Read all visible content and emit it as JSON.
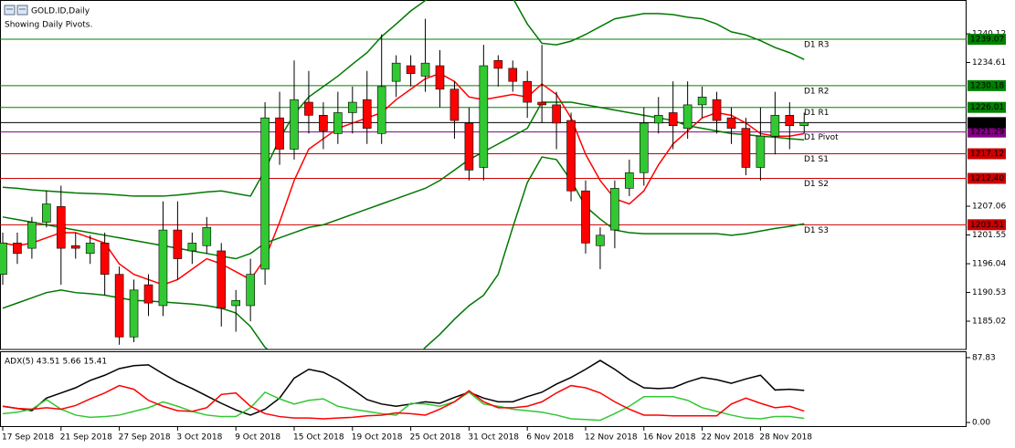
{
  "chart_data": {
    "type": "candlestick",
    "title": "GOLD.ID,Daily",
    "subtitle": "Showing Daily Pivots.",
    "categories": [
      "17 Sep 2018",
      null,
      null,
      null,
      "21 Sep 2018",
      null,
      null,
      null,
      "27 Sep 2018",
      null,
      null,
      null,
      "3 Oct 2018",
      null,
      null,
      null,
      "9 Oct 2018",
      null,
      null,
      null,
      "15 Oct 2018",
      null,
      null,
      null,
      "19 Oct 2018",
      null,
      null,
      null,
      "25 Oct 2018",
      null,
      null,
      null,
      "31 Oct 2018",
      null,
      null,
      null,
      "6 Nov 2018",
      null,
      null,
      null,
      "12 Nov 2018",
      null,
      null,
      null,
      "16 Nov 2018",
      null,
      null,
      null,
      "22 Nov 2018",
      null,
      null,
      null,
      "28 Nov 2018",
      null,
      null,
      null
    ],
    "open": [
      1194,
      1200,
      1199,
      1204,
      1207,
      1199.5,
      1198,
      1200,
      1194,
      1182,
      1192,
      1188,
      1202.5,
      1198.5,
      1199.5,
      1198.5,
      1188,
      1188,
      1195,
      1224,
      1218,
      1227,
      1224.5,
      1221,
      1225,
      1227.5,
      1221,
      1231,
      1234,
      1232,
      1234,
      1229.5,
      1223,
      1214.5,
      1235,
      1233.5,
      1231,
      1227,
      1226.5,
      1223.5,
      1210,
      1199.5,
      1202.5,
      1210.5,
      1213.5,
      1223,
      1225,
      1222,
      1226.5,
      1227.5,
      1224,
      1222,
      1214.5,
      1220.5,
      1224.5,
      1222.5
    ],
    "high": [
      1202,
      1202,
      1205,
      1210,
      1211,
      1202,
      1201.5,
      1202,
      1195.5,
      1193,
      1194,
      1208,
      1208,
      1202,
      1205,
      1200,
      1191,
      1197,
      1227,
      1229,
      1235,
      1233,
      1227,
      1229,
      1230,
      1233,
      1240,
      1236,
      1236,
      1243,
      1237,
      1231,
      1226,
      1238,
      1236,
      1235,
      1233,
      1238,
      1229,
      1225,
      1212,
      1203,
      1212,
      1216,
      1226,
      1228,
      1231,
      1231,
      1230,
      1229,
      1226,
      1224,
      1226,
      1229,
      1227,
      1225
    ],
    "low": [
      1192,
      1196,
      1197,
      1203,
      1192,
      1197,
      1196,
      1190,
      1180.5,
      1181,
      1186,
      1186,
      1193,
      1196,
      1198,
      1184,
      1183,
      1185,
      1192,
      1215,
      1216,
      1221,
      1218,
      1219,
      1221,
      1219,
      1219,
      1228,
      1230,
      1229,
      1226,
      1220,
      1212,
      1212,
      1230,
      1229,
      1224,
      1223,
      1218,
      1208,
      1198,
      1195,
      1199,
      1209,
      1211,
      1221,
      1218,
      1220,
      1224,
      1221,
      1219,
      1213,
      1212,
      1217,
      1218,
      1221
    ],
    "close": [
      1200,
      1198,
      1204,
      1207.5,
      1199,
      1199,
      1200,
      1194,
      1182,
      1191,
      1188.5,
      1202.5,
      1197,
      1200,
      1203,
      1187.5,
      1189,
      1194,
      1224,
      1218,
      1227.5,
      1224.5,
      1221.5,
      1225,
      1227,
      1222,
      1230,
      1234.5,
      1232.5,
      1234.5,
      1229.5,
      1223.5,
      1214,
      1234,
      1233.5,
      1231,
      1227,
      1226.5,
      1223,
      1210,
      1200,
      1201.5,
      1210.5,
      1213.5,
      1223,
      1224.5,
      1222.5,
      1226.5,
      1228,
      1223.5,
      1222,
      1214.5,
      1220.5,
      1224.5,
      1222.5,
      1223.09
    ],
    "up_color": "#32c832",
    "down_color": "#ff0000",
    "ylim": [
      1179.6,
      1246.6
    ],
    "yticks": [
      1185.02,
      1190.53,
      1196.04,
      1201.55,
      1207.06,
      1234.61,
      1240.12
    ],
    "overlays": [
      {
        "color": "#ff0000",
        "values": [
          1200,
          1199.5,
          1200,
          1201,
          1202,
          1202,
          1201,
          1200,
          1196,
          1194,
          1193,
          1192,
          1193,
          1195,
          1197,
          1196,
          1194.5,
          1193,
          1197,
          1204,
          1212,
          1218,
          1220,
          1222,
          1223,
          1224,
          1225,
          1227.5,
          1229.5,
          1231.5,
          1232.5,
          1231,
          1228,
          1227.5,
          1228,
          1228.5,
          1228,
          1230.5,
          1228.5,
          1224,
          1217,
          1212,
          1208.5,
          1207.5,
          1210,
          1215,
          1219,
          1221.5,
          1224,
          1225,
          1224.5,
          1223,
          1221,
          1220.5,
          1220.5,
          1221
        ]
      },
      {
        "color": "#007800",
        "values": [
          1205,
          1204.5,
          1204,
          1203.5,
          1203,
          1202.5,
          1202,
          1201.5,
          1201,
          1200.5,
          1200,
          1199.5,
          1199,
          1198.5,
          1198,
          1197.5,
          1197,
          1198,
          1200,
          1201,
          1202,
          1203,
          1203.5,
          1204.5,
          1205.5,
          1206.5,
          1207.5,
          1208.5,
          1209.5,
          1210.5,
          1212,
          1214,
          1216,
          1217.5,
          1219,
          1220.5,
          1222,
          1227,
          1227,
          1227,
          1226.5,
          1226,
          1225.5,
          1225,
          1224.5,
          1224,
          1223.5,
          1222.5,
          1222,
          1221.5,
          1221,
          1220.8,
          1220.5,
          1220.3,
          1220,
          1219.8
        ]
      },
      {
        "color": "#007800",
        "values": [
          1210.7,
          1210.5,
          1210.2,
          1210,
          1209.8,
          1209.6,
          1209.5,
          1209.4,
          1209.2,
          1209,
          1209,
          1209,
          1209.2,
          1209.5,
          1209.8,
          1210,
          1209.5,
          1209,
          1214,
          1220,
          1224.7,
          1228,
          1230,
          1232,
          1234.3,
          1236.5,
          1239.6,
          1242,
          1244.5,
          1246.5,
          1248,
          1249,
          1250,
          1251,
          1250,
          1247,
          1242,
          1238.3,
          1238,
          1238.7,
          1240,
          1241.5,
          1243,
          1243.5,
          1244,
          1244,
          1243.8,
          1243.3,
          1243,
          1242,
          1240.5,
          1239.9,
          1238.8,
          1237.5,
          1236.5,
          1235.2
        ]
      },
      {
        "color": "#007800",
        "values": [
          1187.5,
          1188.5,
          1189.5,
          1190.5,
          1191,
          1190.5,
          1190.3,
          1190,
          1189.5,
          1189,
          1188.9,
          1188.7,
          1188.5,
          1188.3,
          1188,
          1187.5,
          1186.6,
          1184,
          1180,
          1178,
          1177,
          1176,
          1175.5,
          1175,
          1175,
          1175,
          1175,
          1175.5,
          1177,
          1180,
          1182.5,
          1185.4,
          1188,
          1190,
          1194,
          1203,
          1211.6,
          1216.5,
          1216,
          1212,
          1207,
          1204.6,
          1202.5,
          1202,
          1201.8,
          1201.8,
          1201.8,
          1201.8,
          1201.8,
          1201.8,
          1201.5,
          1201.8,
          1202.3,
          1202.8,
          1203.2,
          1203.7
        ]
      }
    ],
    "pivots": [
      {
        "label": "D1 R3",
        "value": 1239.07,
        "color": "#008000"
      },
      {
        "label": "D1 R2",
        "value": 1230.18,
        "color": "#008000"
      },
      {
        "label": "D1 R1",
        "value": 1226.01,
        "color": "#008000"
      },
      {
        "label": "D1 Pivot",
        "value": 1221.29,
        "color": "#800080"
      },
      {
        "label": "D1 S1",
        "value": 1217.12,
        "color": "#cc0000"
      },
      {
        "label": "D1 S2",
        "value": 1212.4,
        "value_label": "1212.40",
        "color": "#cc0000"
      },
      {
        "label": "D1 S3",
        "value": 1203.51,
        "color": "#cc0000"
      }
    ],
    "last_price": 1223.09,
    "indicator": {
      "label": "ADX(5) 43.51 5.66 15.41",
      "ylim": [
        -4.9,
        95.2
      ],
      "yticks": [
        {
          "value": 0,
          "label": "0.00"
        },
        87.83
      ],
      "series": [
        {
          "color": "#000000",
          "values": [
            22,
            19,
            16,
            33,
            40,
            47,
            57,
            64,
            73,
            77,
            78,
            66,
            55,
            46,
            36,
            26,
            17,
            10,
            18,
            33,
            60,
            72,
            68,
            58,
            45,
            31,
            25,
            22,
            25,
            28,
            26,
            34,
            41,
            33,
            28,
            28,
            35,
            41,
            52,
            61,
            72,
            84,
            72,
            58,
            47,
            46,
            47,
            55,
            61,
            58,
            53,
            59,
            64,
            44,
            45,
            43.51
          ]
        },
        {
          "color": "#32c832",
          "values": [
            12,
            14,
            18,
            31,
            18,
            10,
            7,
            8,
            10,
            15,
            20,
            28,
            22,
            15,
            10,
            8,
            8,
            20,
            41,
            32,
            25,
            30,
            32,
            22,
            18,
            15,
            12,
            10,
            26,
            25,
            22,
            28,
            41,
            25,
            22,
            18,
            16,
            14,
            10,
            5,
            4,
            3,
            12,
            22,
            35,
            35,
            35,
            30,
            20,
            15,
            10,
            6,
            5,
            8,
            8,
            5.66
          ]
        },
        {
          "color": "#ff0000",
          "values": [
            22,
            19,
            18,
            20,
            18,
            23,
            32,
            40,
            50,
            45,
            30,
            22,
            16,
            15,
            20,
            38,
            40,
            22,
            12,
            8,
            6,
            6,
            5,
            6,
            7,
            9,
            10,
            13,
            12,
            10,
            18,
            28,
            43,
            28,
            20,
            20,
            22,
            28,
            40,
            50,
            47,
            40,
            28,
            18,
            10,
            10,
            9,
            9,
            9,
            9,
            25,
            33,
            26,
            20,
            22,
            15.41
          ]
        }
      ]
    }
  }
}
